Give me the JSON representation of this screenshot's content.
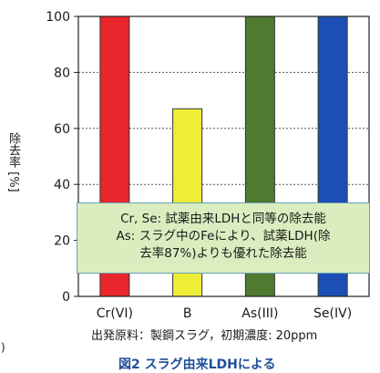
{
  "chart_data": {
    "type": "bar",
    "categories": [
      "Cr(VI)",
      "B",
      "As(III)",
      "Se(IV)"
    ],
    "values": [
      100,
      67,
      100,
      100
    ],
    "colors": [
      "#e8262b",
      "#eeee37",
      "#4f7a30",
      "#1c4fb5"
    ],
    "ylabel": "除去率 [%]",
    "ylim": [
      0,
      100
    ],
    "yticks": [
      0,
      20,
      40,
      60,
      80,
      100
    ],
    "grid": "dashed-horizontal"
  },
  "callout": {
    "line1": "Cr, Se: 試薬由来LDHと同等の除去能",
    "line2": "As: スラグ中のFeにより、試薬LDH(除",
    "line3": "去率87%)よりも優れた除去能"
  },
  "footnote": "出発原料：製鋼スラグ，初期濃度: 20ppm",
  "caption_partial": "図2 スラグ由来LDHによる",
  "left_mark": ")"
}
